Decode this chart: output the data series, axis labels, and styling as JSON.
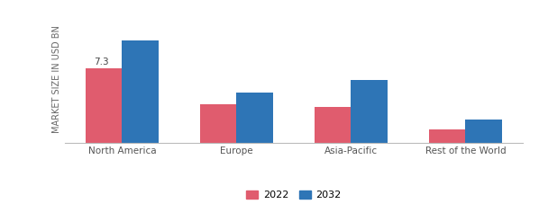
{
  "categories": [
    "North America",
    "Europe",
    "Asia-Pacific",
    "Rest of the World"
  ],
  "values_2022": [
    6.2,
    3.2,
    3.0,
    1.1
  ],
  "values_2032": [
    8.5,
    4.2,
    5.2,
    1.9
  ],
  "annotation_text": "7.3",
  "color_2022": "#e05c6e",
  "color_2032": "#2e75b6",
  "ylabel": "MARKET SIZE IN USD BN",
  "legend_labels": [
    "2022",
    "2032"
  ],
  "background_color": "#ffffff",
  "bar_width": 0.32,
  "ylabel_fontsize": 7.0,
  "tick_fontsize": 7.5,
  "legend_fontsize": 8.0,
  "ylim_max": 10.5
}
